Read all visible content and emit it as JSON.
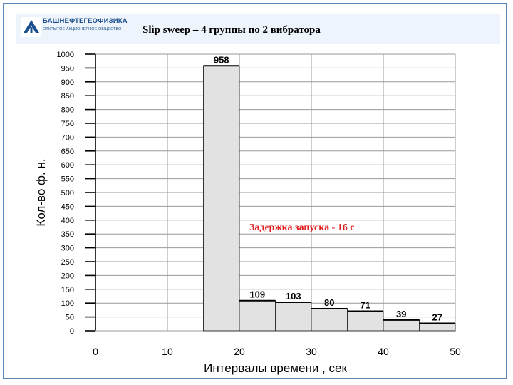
{
  "header": {
    "logo_name": "БАШНЕФТЕГЕОФИЗИКА",
    "logo_subtitle": "ОТКРЫТОЕ АКЦИОНЕРНОЕ ОБЩЕСТВО",
    "title": "Slip sweep –  4 группы по 2 вибратора"
  },
  "annotation": "Задержка запуска - 16 с",
  "colors": {
    "bar_fill": "#e2e2e2",
    "bar_stroke": "#333333",
    "grid": "#999999",
    "annotation": "#e02020",
    "frame": "#5b86b8"
  },
  "chart_data": {
    "type": "bar",
    "title": "",
    "xlabel": "Интервалы времени , сек",
    "ylabel": "Кол-во ф. н.",
    "xlim": [
      0,
      50
    ],
    "ylim": [
      0,
      1000
    ],
    "x_ticks": [
      "0",
      "10",
      "20",
      "30",
      "40",
      "50"
    ],
    "y_ticks": [
      "0",
      "50",
      "100",
      "150",
      "200",
      "250",
      "300",
      "350",
      "400",
      "450",
      "500",
      "550",
      "600",
      "650",
      "700",
      "750",
      "800",
      "850",
      "900",
      "950",
      "1000"
    ],
    "grid": true,
    "bins": [
      {
        "x0": 15,
        "x1": 20,
        "value": 958,
        "label": "958"
      },
      {
        "x0": 20,
        "x1": 25,
        "value": 109,
        "label": "109"
      },
      {
        "x0": 25,
        "x1": 30,
        "value": 103,
        "label": "103"
      },
      {
        "x0": 30,
        "x1": 35,
        "value": 80,
        "label": "80"
      },
      {
        "x0": 35,
        "x1": 40,
        "value": 71,
        "label": "71"
      },
      {
        "x0": 40,
        "x1": 45,
        "value": 39,
        "label": "39"
      },
      {
        "x0": 45,
        "x1": 50,
        "value": 27,
        "label": "27"
      }
    ]
  }
}
